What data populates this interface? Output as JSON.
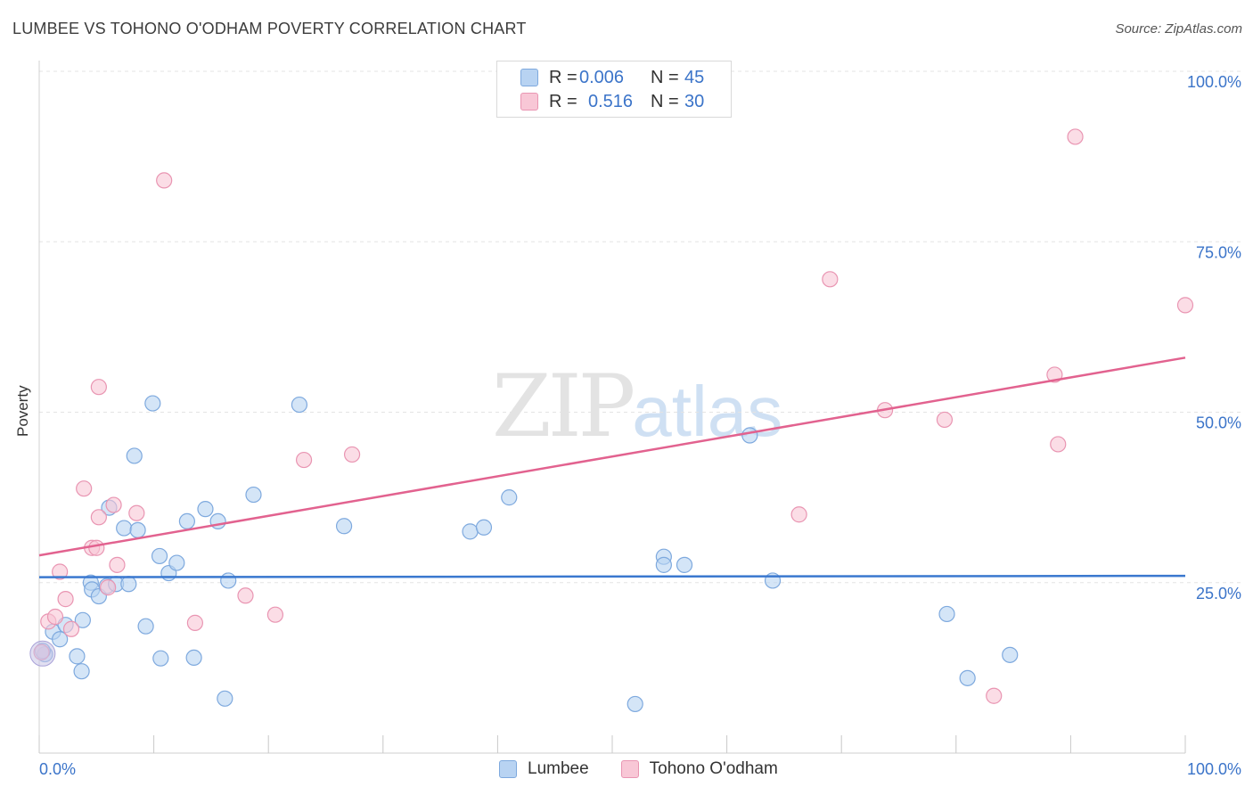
{
  "title": "LUMBEE VS TOHONO O'ODHAM POVERTY CORRELATION CHART",
  "source": "Source: ZipAtlas.com",
  "watermark": {
    "zip": "ZIP",
    "atlas": "atlas"
  },
  "legend": {
    "rows": [
      {
        "r_label": "R =",
        "r_value": "0.006",
        "n_label": "N =",
        "n_value": "45",
        "color": "#b8d3f2",
        "border": "#7ea9de"
      },
      {
        "r_label": "R =",
        "r_value": "0.516",
        "n_label": "N =",
        "n_value": "30",
        "color": "#f8c7d6",
        "border": "#e995b2"
      }
    ]
  },
  "bottom_legend": {
    "lumbee": "Lumbee",
    "tohono": "Tohono O'odham"
  },
  "chart_data": {
    "type": "scatter",
    "title": "LUMBEE VS TOHONO O'ODHAM POVERTY CORRELATION CHART",
    "xlabel": "",
    "ylabel": "Poverty",
    "xlim": [
      0,
      100
    ],
    "ylim": [
      0,
      100
    ],
    "x_tick_labels": [
      "0.0%",
      "100.0%"
    ],
    "y_tick_labels": [
      "25.0%",
      "50.0%",
      "75.0%",
      "100.0%"
    ],
    "y_ticks": [
      25,
      50,
      75,
      100
    ],
    "series": [
      {
        "name": "Lumbee",
        "color": "#3a78cf",
        "fill": "#b8d3f2",
        "stroke": "#7ea9de",
        "trend": {
          "x": [
            0,
            100
          ],
          "y": [
            25.8,
            26.0
          ]
        },
        "points": [
          [
            0.5,
            14.5
          ],
          [
            1.2,
            17.8
          ],
          [
            1.8,
            16.7
          ],
          [
            2.3,
            18.8
          ],
          [
            3.7,
            12.0
          ],
          [
            3.3,
            14.2
          ],
          [
            3.8,
            19.5
          ],
          [
            4.5,
            25.0
          ],
          [
            4.6,
            24.0
          ],
          [
            5.2,
            23.0
          ],
          [
            5.9,
            24.5
          ],
          [
            6.1,
            36.0
          ],
          [
            6.7,
            24.8
          ],
          [
            7.4,
            33.0
          ],
          [
            7.8,
            24.8
          ],
          [
            8.3,
            43.6
          ],
          [
            8.6,
            32.7
          ],
          [
            9.3,
            18.6
          ],
          [
            9.9,
            51.3
          ],
          [
            10.5,
            28.9
          ],
          [
            10.6,
            13.9
          ],
          [
            11.3,
            26.4
          ],
          [
            12.0,
            27.9
          ],
          [
            12.9,
            34.0
          ],
          [
            13.5,
            14.0
          ],
          [
            14.5,
            35.8
          ],
          [
            15.6,
            34.0
          ],
          [
            16.5,
            25.3
          ],
          [
            16.2,
            8.0
          ],
          [
            18.7,
            37.9
          ],
          [
            22.7,
            51.1
          ],
          [
            26.6,
            33.3
          ],
          [
            37.6,
            32.5
          ],
          [
            38.8,
            33.1
          ],
          [
            41.0,
            37.5
          ],
          [
            52.0,
            7.2
          ],
          [
            54.5,
            28.8
          ],
          [
            54.5,
            27.6
          ],
          [
            56.3,
            27.6
          ],
          [
            62.0,
            46.6
          ],
          [
            64.0,
            25.3
          ],
          [
            79.2,
            20.4
          ],
          [
            81.0,
            11.0
          ],
          [
            84.7,
            14.4
          ],
          [
            0.3,
            15.0
          ]
        ]
      },
      {
        "name": "Tohono O'odham",
        "color": "#e2628f",
        "fill": "#f8c7d6",
        "stroke": "#e995b2",
        "trend": {
          "x": [
            0,
            100
          ],
          "y": [
            29.0,
            58.0
          ]
        },
        "points": [
          [
            0.2,
            14.8
          ],
          [
            0.8,
            19.3
          ],
          [
            1.4,
            20.0
          ],
          [
            1.8,
            26.6
          ],
          [
            2.3,
            22.6
          ],
          [
            2.8,
            18.2
          ],
          [
            3.9,
            38.8
          ],
          [
            4.6,
            30.1
          ],
          [
            5.0,
            30.1
          ],
          [
            5.2,
            53.7
          ],
          [
            5.2,
            34.6
          ],
          [
            6.0,
            24.3
          ],
          [
            6.5,
            36.4
          ],
          [
            6.8,
            27.6
          ],
          [
            8.5,
            35.2
          ],
          [
            10.9,
            84.0
          ],
          [
            13.6,
            19.1
          ],
          [
            18.0,
            23.1
          ],
          [
            20.6,
            20.3
          ],
          [
            23.1,
            43.0
          ],
          [
            27.3,
            43.8
          ],
          [
            66.3,
            35.0
          ],
          [
            69.0,
            69.5
          ],
          [
            73.8,
            50.3
          ],
          [
            79.0,
            48.9
          ],
          [
            83.3,
            8.4
          ],
          [
            88.6,
            55.5
          ],
          [
            88.9,
            45.3
          ],
          [
            90.4,
            90.4
          ],
          [
            100.0,
            65.7
          ]
        ]
      }
    ]
  }
}
